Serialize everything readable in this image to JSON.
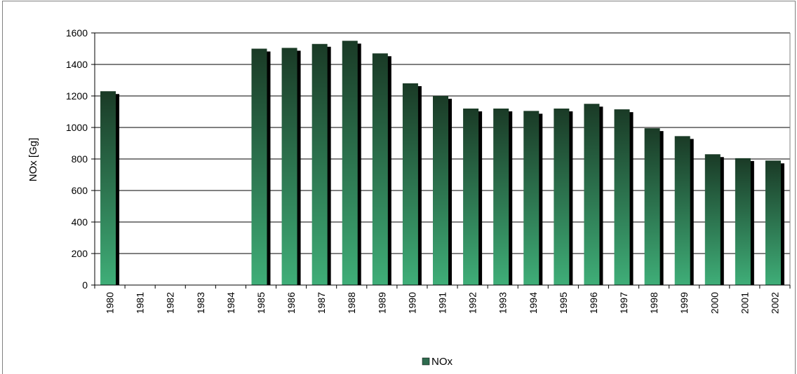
{
  "chart_data": {
    "type": "bar",
    "categories": [
      "1980",
      "1981",
      "1982",
      "1983",
      "1984",
      "1985",
      "1986",
      "1987",
      "1988",
      "1989",
      "1990",
      "1991",
      "1992",
      "1993",
      "1994",
      "1995",
      "1996",
      "1997",
      "1998",
      "1999",
      "2000",
      "2001",
      "2002"
    ],
    "series": [
      {
        "name": "NOx",
        "values": [
          1230,
          null,
          null,
          null,
          null,
          1500,
          1505,
          1530,
          1550,
          1470,
          1280,
          1200,
          1120,
          1120,
          1105,
          1120,
          1150,
          1115,
          995,
          945,
          830,
          805,
          790
        ]
      }
    ],
    "title": "",
    "xlabel": "",
    "ylabel": "NOx [Gg]",
    "ylim": [
      0,
      1600
    ],
    "yticks": [
      0,
      200,
      400,
      600,
      800,
      1000,
      1200,
      1400,
      1600
    ],
    "grid": true,
    "legend_position": "bottom",
    "colors": {
      "bar_top": "#1a3a26",
      "bar_bottom": "#3fae78",
      "bar_side": "#000000",
      "grid": "#000000",
      "legend_swatch": "#2e6b4e"
    }
  }
}
